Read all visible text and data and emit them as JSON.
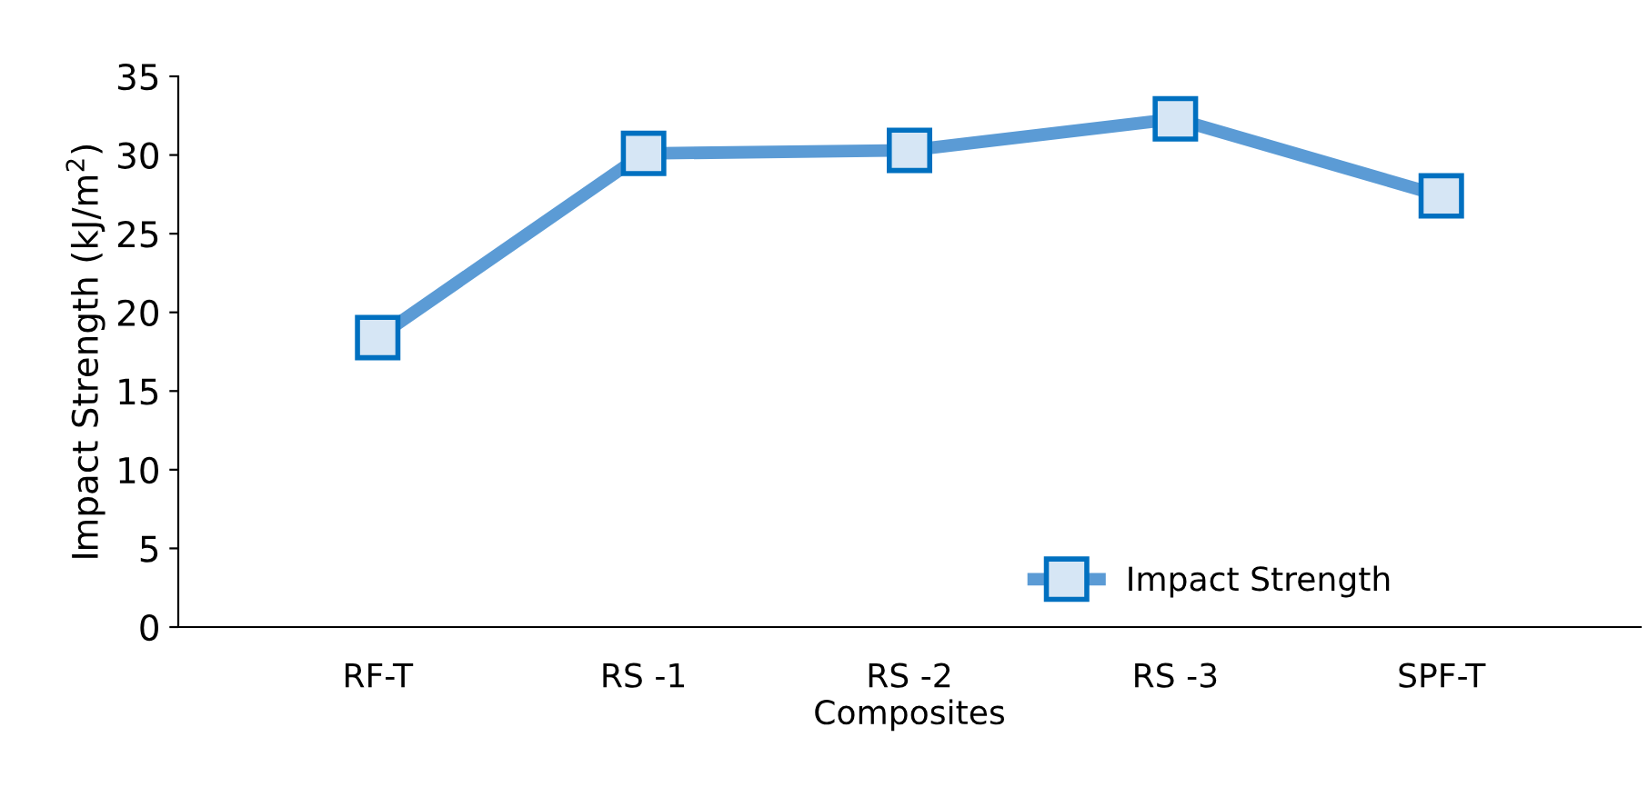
{
  "chart_data": {
    "type": "line",
    "xlabel": "Composites",
    "ylabel": "Impact Strength (kJ/m$^{2}$)",
    "categories": [
      "RF-T",
      "RS -1",
      "RS -2",
      "RS -3",
      "SPF-T"
    ],
    "series": [
      {
        "name": "Impact Strength",
        "color": "#5b9bd5",
        "values": [
          18.4,
          30.1,
          30.3,
          32.3,
          27.4
        ]
      }
    ],
    "ylim": [
      0,
      35
    ],
    "yticks": [
      0,
      5,
      10,
      15,
      20,
      25,
      30,
      35
    ],
    "grid": false,
    "legend": "bottom right",
    "marker": "square",
    "line_style": "solid"
  }
}
